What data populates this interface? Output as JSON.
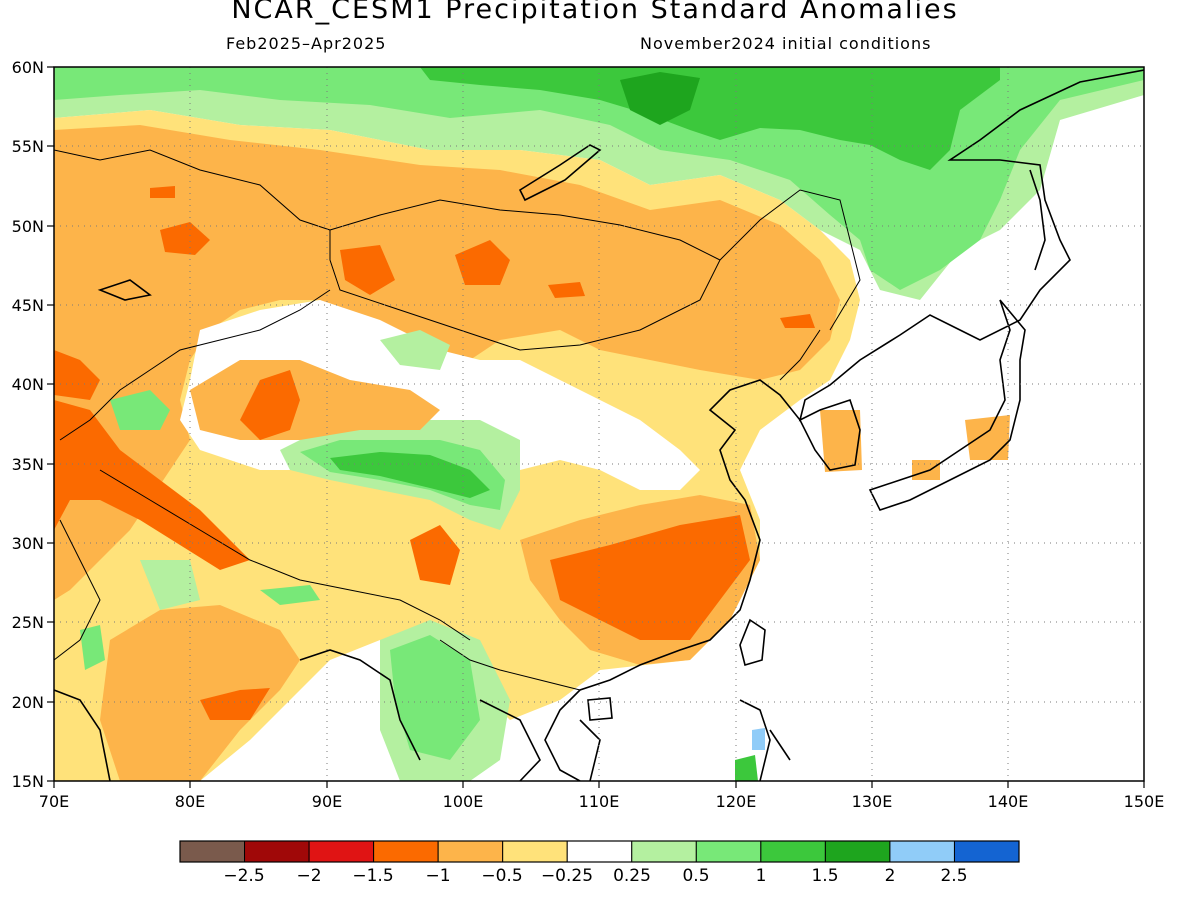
{
  "title": "NCAR_CESM1 Precipitation Standard Anomalies",
  "subtitle_left": "Feb2025–Apr2025",
  "subtitle_right": "November2024 initial conditions",
  "map": {
    "lon_ticks": [
      "70E",
      "80E",
      "90E",
      "100E",
      "110E",
      "120E",
      "130E",
      "140E",
      "150E"
    ],
    "lat_ticks": [
      "15N",
      "20N",
      "25N",
      "30N",
      "35N",
      "40N",
      "45N",
      "50N",
      "55N",
      "60N"
    ],
    "grid": "dotted"
  },
  "colorbar": {
    "colors": [
      "#7a5a4c",
      "#a00808",
      "#e01414",
      "#fb6a00",
      "#fdb44a",
      "#ffe27a",
      "#ffffff",
      "#b4f0a0",
      "#78e878",
      "#3cc83c",
      "#1ea51e",
      "#90ccf8",
      "#1464d2"
    ],
    "labels": [
      "−2.5",
      "−2",
      "−1.5",
      "−1",
      "−0.5",
      "−0.25",
      "0.25",
      "0.5",
      "1",
      "1.5",
      "2",
      "2.5"
    ]
  },
  "legend_classes": {
    "dry_strong": "#fb6a00",
    "dry_moderate": "#fdb44a",
    "dry_weak": "#ffe27a",
    "wet_weak": "#b4f0a0",
    "wet_moderate": "#78e878",
    "wet_strong": "#3cc83c",
    "wet_very_strong": "#1ea51e",
    "wet_extreme": "#90ccf8"
  }
}
